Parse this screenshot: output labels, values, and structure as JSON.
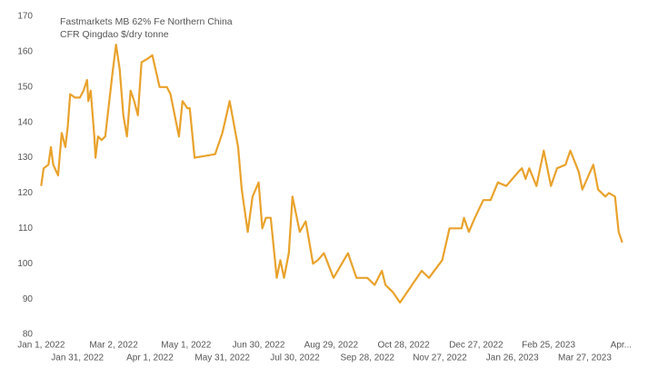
{
  "chart_data": {
    "type": "line",
    "title": "Fastmarkets MB 62% Fe Northern China",
    "subtitle": "CFR Qingdao $/dry tonne",
    "x": [
      "2022-01-01",
      "2022-01-03",
      "2022-01-07",
      "2022-01-09",
      "2022-01-11",
      "2022-01-15",
      "2022-01-18",
      "2022-01-21",
      "2022-01-23",
      "2022-01-25",
      "2022-01-29",
      "2022-02-02",
      "2022-02-05",
      "2022-02-08",
      "2022-02-09",
      "2022-02-11",
      "2022-02-14",
      "2022-02-15",
      "2022-02-17",
      "2022-02-20",
      "2022-02-23",
      "2022-02-26",
      "2022-03-01",
      "2022-03-04",
      "2022-03-07",
      "2022-03-10",
      "2022-03-13",
      "2022-03-16",
      "2022-03-19",
      "2022-03-22",
      "2022-03-25",
      "2022-03-30",
      "2022-04-03",
      "2022-04-09",
      "2022-04-15",
      "2022-04-18",
      "2022-04-25",
      "2022-04-28",
      "2022-05-02",
      "2022-05-04",
      "2022-05-08",
      "2022-05-25",
      "2022-05-31",
      "2022-06-06",
      "2022-06-13",
      "2022-06-16",
      "2022-06-21",
      "2022-06-25",
      "2022-06-30",
      "2022-07-03",
      "2022-07-06",
      "2022-07-10",
      "2022-07-15",
      "2022-07-18",
      "2022-07-21",
      "2022-07-25",
      "2022-07-28",
      "2022-08-03",
      "2022-08-08",
      "2022-08-14",
      "2022-08-18",
      "2022-08-23",
      "2022-08-31",
      "2022-09-12",
      "2022-09-19",
      "2022-09-28",
      "2022-10-04",
      "2022-10-10",
      "2022-10-13",
      "2022-10-19",
      "2022-10-25",
      "2022-11-12",
      "2022-11-18",
      "2022-11-29",
      "2022-12-05",
      "2022-12-09",
      "2022-12-15",
      "2022-12-17",
      "2022-12-21",
      "2022-12-26",
      "2023-01-02",
      "2023-01-08",
      "2023-01-14",
      "2023-01-21",
      "2023-01-31",
      "2023-02-03",
      "2023-02-06",
      "2023-02-09",
      "2023-02-15",
      "2023-02-21",
      "2023-02-27",
      "2023-03-04",
      "2023-03-11",
      "2023-03-15",
      "2023-03-22",
      "2023-03-25",
      "2023-04-03",
      "2023-04-07",
      "2023-04-10",
      "2023-04-13",
      "2023-04-16",
      "2023-04-21",
      "2023-04-24",
      "2023-04-27"
    ],
    "series": [
      {
        "name": "Fastmarkets MB 62% Fe Northern China",
        "color": "#e9a22c",
        "values": [
          122,
          127,
          128,
          133,
          128,
          125,
          137,
          133,
          139,
          148,
          147,
          147,
          149,
          152,
          146,
          149,
          136,
          130,
          136,
          135,
          136,
          145,
          154,
          162,
          155,
          142,
          136,
          149,
          146,
          142,
          157,
          158,
          159,
          150,
          150,
          148,
          136,
          146,
          144,
          144,
          130,
          131,
          137,
          146,
          133,
          121,
          109,
          119,
          123,
          110,
          113,
          113,
          96,
          101,
          96,
          103,
          119,
          109,
          112,
          100,
          101,
          103,
          96,
          103,
          96,
          96,
          94,
          98,
          94,
          92,
          89,
          98,
          96,
          101,
          110,
          110,
          110,
          113,
          109,
          113,
          118,
          118,
          123,
          122,
          126,
          127,
          124,
          127,
          122,
          132,
          122,
          127,
          128,
          132,
          126,
          121,
          128,
          121,
          120,
          119,
          120,
          119,
          109,
          106
        ]
      }
    ],
    "xlim": [
      "2021-12-31",
      "2023-04-28"
    ],
    "xticks": [
      {
        "value": "2022-01-01",
        "label": "Jan 1, 2022"
      },
      {
        "value": "2022-01-31",
        "label": "Jan 31, 2022"
      },
      {
        "value": "2022-03-02",
        "label": "Mar 2, 2022"
      },
      {
        "value": "2022-04-01",
        "label": "Apr 1, 2022"
      },
      {
        "value": "2022-05-01",
        "label": "May 1, 2022"
      },
      {
        "value": "2022-05-31",
        "label": "May 31, 2022"
      },
      {
        "value": "2022-06-30",
        "label": "Jun 30, 2022"
      },
      {
        "value": "2022-07-30",
        "label": "Jul 30, 2022"
      },
      {
        "value": "2022-08-29",
        "label": "Aug 29, 2022"
      },
      {
        "value": "2022-09-28",
        "label": "Sep 28, 2022"
      },
      {
        "value": "2022-10-28",
        "label": "Oct 28, 2022"
      },
      {
        "value": "2022-11-27",
        "label": "Nov 27, 2022"
      },
      {
        "value": "2022-12-27",
        "label": "Dec 27, 2022"
      },
      {
        "value": "2023-01-26",
        "label": "Jan 26, 2023"
      },
      {
        "value": "2023-02-25",
        "label": "Feb 25, 2023"
      },
      {
        "value": "2023-03-27",
        "label": "Mar 27, 2023"
      },
      {
        "value": "2023-04-26",
        "label": "Apr..."
      }
    ],
    "ylim": [
      80,
      170
    ],
    "yticks": [
      80,
      90,
      100,
      110,
      120,
      130,
      140,
      150,
      160,
      170
    ],
    "grid": false
  }
}
